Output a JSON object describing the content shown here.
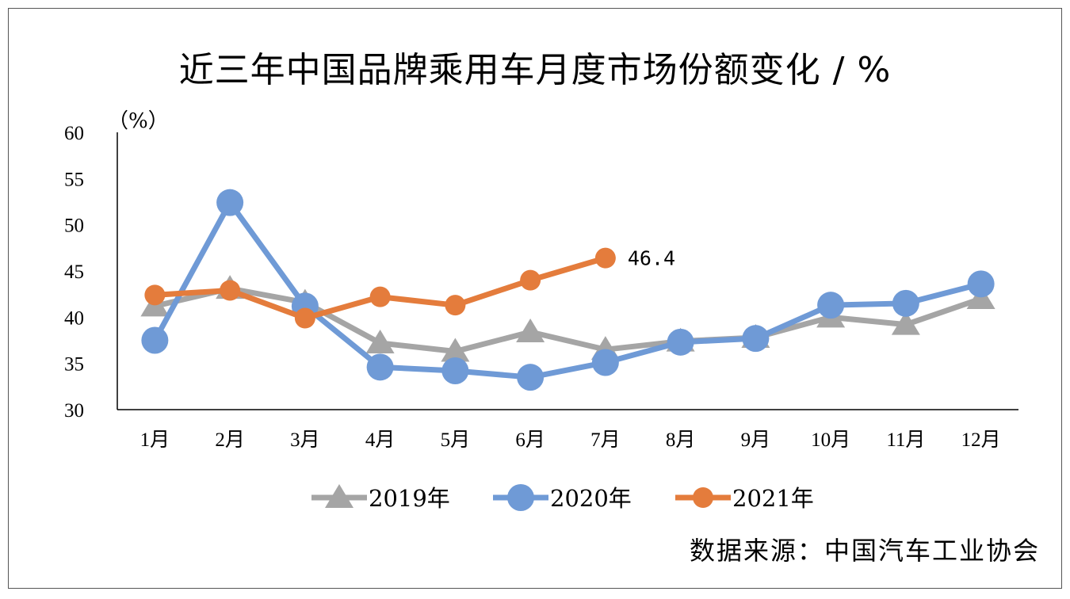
{
  "title": "近三年中国品牌乘用车月度市场份额变化 / %",
  "source": "数据来源：中国汽车工业协会",
  "chart_data": {
    "type": "line",
    "title": "近三年中国品牌乘用车月度市场份额变化 / %",
    "ylabel": "（%）",
    "xlabel": "",
    "ylim": [
      30,
      60
    ],
    "yticks": [
      30,
      35,
      40,
      45,
      50,
      55,
      60
    ],
    "categories": [
      "1月",
      "2月",
      "3月",
      "4月",
      "5月",
      "6月",
      "7月",
      "8月",
      "9月",
      "10月",
      "11月",
      "12月"
    ],
    "series": [
      {
        "name": "2019年",
        "color": "#a5a5a5",
        "marker": "triangle",
        "values": [
          41.2,
          43.1,
          41.6,
          37.2,
          36.3,
          38.4,
          36.5,
          37.4,
          37.8,
          40.0,
          39.2,
          42.0
        ]
      },
      {
        "name": "2020年",
        "color": "#6f9ad6",
        "marker": "circle",
        "values": [
          37.5,
          52.4,
          41.2,
          34.6,
          34.2,
          33.5,
          35.1,
          37.3,
          37.7,
          41.3,
          41.5,
          43.6
        ]
      },
      {
        "name": "2021年",
        "color": "#e47c3c",
        "marker": "circle",
        "values": [
          42.4,
          42.9,
          39.9,
          42.2,
          41.3,
          44.0,
          46.4,
          null,
          null,
          null,
          null,
          null
        ]
      }
    ],
    "annotations": [
      {
        "series": "2021年",
        "category": "7月",
        "text": "46.4"
      }
    ],
    "legend": {
      "position": "bottom"
    },
    "grid": false
  }
}
